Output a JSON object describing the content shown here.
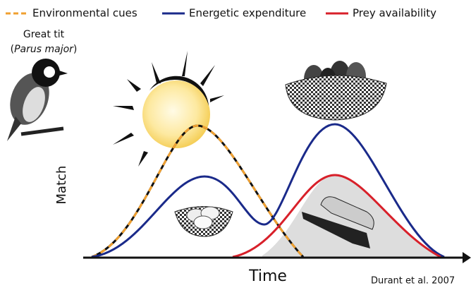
{
  "legend": [
    "Environmental cues",
    "Energetic expenditure",
    "Prey availability"
  ],
  "species": {
    "common": "Great tit",
    "latin_line": [
      "(",
      "Parus major",
      ")"
    ]
  },
  "y_axis_label": "Match",
  "x_axis_label": "Time",
  "credit": "Durant et al. 2007"
}
